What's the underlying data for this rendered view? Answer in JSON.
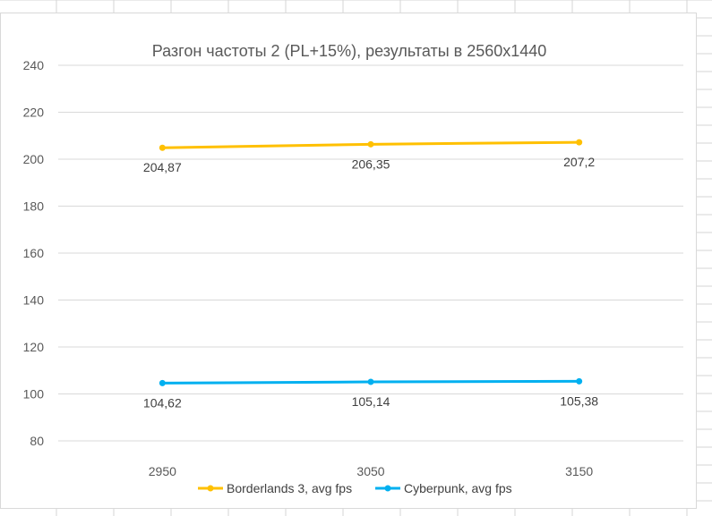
{
  "chart_data": {
    "type": "line",
    "title": "Разгон частоты 2 (PL+15%), результаты в 2560х1440",
    "xlabel": "",
    "ylabel": "",
    "x": [
      "2950",
      "3050",
      "3150"
    ],
    "ylim": [
      80,
      240
    ],
    "ystep": 20,
    "y_ticks": [
      "80",
      "100",
      "120",
      "140",
      "160",
      "180",
      "200",
      "220",
      "240"
    ],
    "grid": true,
    "legend_position": "bottom",
    "series": [
      {
        "name": "Borderlands 3, avg fps",
        "color": "#ffc000",
        "values": [
          204.87,
          206.35,
          207.2
        ],
        "labels": [
          "204,87",
          "206,35",
          "207,2"
        ]
      },
      {
        "name": "Cyberpunk, avg fps",
        "color": "#00b0f0",
        "values": [
          104.62,
          105.14,
          105.38
        ],
        "labels": [
          "104,62",
          "105,14",
          "105,38"
        ]
      }
    ]
  }
}
